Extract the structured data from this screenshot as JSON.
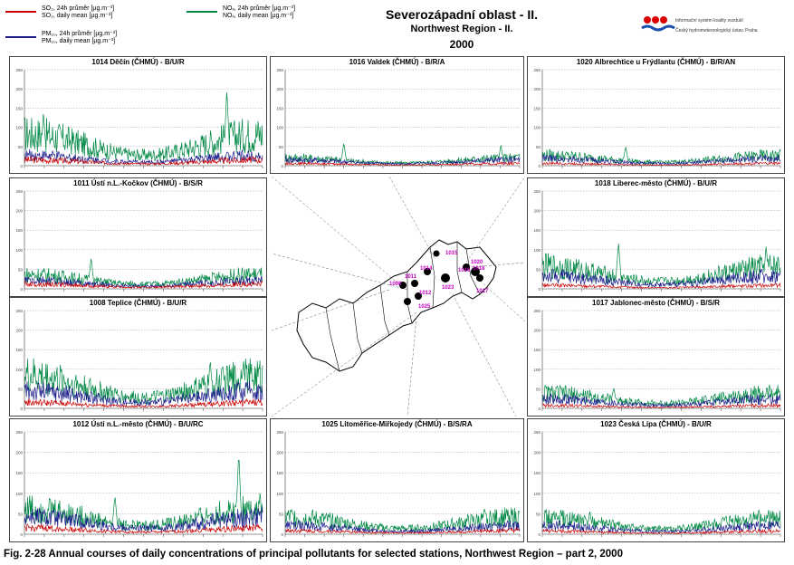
{
  "legend": {
    "items": [
      {
        "label_cz": "SO₂, 24h průměr [µg.m⁻³]",
        "label_en": "SO₂, daily mean [µg.m⁻³]",
        "color": "#cc0000"
      },
      {
        "label_cz": "PM₁₀, 24h průměr [µg.m⁻³]",
        "label_en": "PM₁₀, daily mean [µg.m⁻³]",
        "color": "#1a1a8c"
      },
      {
        "label_cz": "NOₓ, 24h průměr [µg.m⁻³]",
        "label_en": "NOₓ, daily mean [µg.m⁻³]",
        "color": "#008844"
      }
    ]
  },
  "header": {
    "title_cz": "Severozápadní oblast - II.",
    "title_en": "Northwest Region - II.",
    "year": "2000"
  },
  "institution": {
    "line1": "Informační systém kvality ovzduší",
    "line2": "Český hydrometeorologický ústav, Praha"
  },
  "caption": "Fig. 2-28  Annual courses of daily concentrations of principal pollutants for selected stations, Northwest Region – part 2, 2000",
  "map": {
    "station_labels": [
      "1015",
      "1014",
      "1016",
      "1018",
      "1020",
      "1008",
      "1011",
      "1023",
      "1012",
      "1017",
      "1025"
    ]
  },
  "chart_data": [
    {
      "type": "line",
      "title": "1014 Děčín (ČHMÚ)  -  B/U/R",
      "ylim": [
        0,
        250
      ],
      "yticks": [
        "0",
        "50",
        "100",
        "150",
        "200",
        "250"
      ],
      "level": {
        "SO2": 10,
        "PM10": 18,
        "NOx": 55,
        "peaks": [
          [
            8,
            140
          ],
          [
            85,
            200
          ]
        ]
      },
      "series": [
        {
          "name": "SO₂",
          "color": "#cc0000"
        },
        {
          "name": "PM₁₀",
          "color": "#1a1a8c"
        },
        {
          "name": "NOₓ",
          "color": "#008844"
        }
      ]
    },
    {
      "type": "line",
      "title": "1016 Valdek (ČHMÚ)  -  B/R/A",
      "ylim": [
        0,
        250
      ],
      "yticks": [
        "0",
        "50",
        "100",
        "150",
        "200",
        "250"
      ],
      "level": {
        "SO2": 4,
        "PM10": 10,
        "NOx": 14,
        "peaks": [
          [
            25,
            60
          ],
          [
            92,
            55
          ]
        ]
      },
      "series": [
        {
          "name": "SO₂",
          "color": "#cc0000"
        },
        {
          "name": "PM₁₀",
          "color": "#1a1a8c"
        },
        {
          "name": "NOₓ",
          "color": "#008844"
        }
      ]
    },
    {
      "type": "line",
      "title": "1020 Albrechtice u Frýdlantu (ČHMÚ)  -  B/R/AN",
      "ylim": [
        0,
        250
      ],
      "yticks": [
        "0",
        "50",
        "100",
        "150",
        "200",
        "250"
      ],
      "level": {
        "SO2": 4,
        "PM10": 12,
        "NOx": 18,
        "peaks": [
          [
            35,
            50
          ]
        ]
      },
      "series": [
        {
          "name": "SO₂",
          "color": "#cc0000"
        },
        {
          "name": "PM₁₀",
          "color": "#1a1a8c"
        },
        {
          "name": "NOₓ",
          "color": "#008844"
        }
      ]
    },
    {
      "type": "line",
      "title": "1011 Ústí n.L.-Kočkov (ČHMÚ)  -  B/S/R",
      "ylim": [
        0,
        250
      ],
      "yticks": [
        "0",
        "50",
        "100",
        "150",
        "200",
        "250"
      ],
      "level": {
        "SO2": 8,
        "PM10": 14,
        "NOx": 24,
        "peaks": [
          [
            28,
            80
          ]
        ]
      },
      "series": [
        {
          "name": "SO₂",
          "color": "#cc0000"
        },
        {
          "name": "PM₁₀",
          "color": "#1a1a8c"
        },
        {
          "name": "NOₓ",
          "color": "#008844"
        }
      ]
    },
    {
      "type": "line",
      "title": "1018 Liberec-město (ČHMÚ)  -  B/U/R",
      "ylim": [
        0,
        250
      ],
      "yticks": [
        "0",
        "50",
        "100",
        "150",
        "200",
        "250"
      ],
      "level": {
        "SO2": 6,
        "PM10": 22,
        "NOx": 38,
        "peaks": [
          [
            32,
            120
          ],
          [
            94,
            110
          ]
        ]
      },
      "series": [
        {
          "name": "SO₂",
          "color": "#cc0000"
        },
        {
          "name": "PM₁₀",
          "color": "#1a1a8c"
        },
        {
          "name": "NOₓ",
          "color": "#008844"
        }
      ]
    },
    {
      "type": "line",
      "title": "1008 Teplice (ČHMÚ)  -  B/U/R",
      "ylim": [
        0,
        250
      ],
      "yticks": [
        "0",
        "50",
        "100",
        "150",
        "200",
        "250"
      ],
      "level": {
        "SO2": 10,
        "PM10": 30,
        "NOx": 55,
        "peaks": [
          [
            78,
            125
          ],
          [
            92,
            125
          ]
        ]
      },
      "series": [
        {
          "name": "SO₂",
          "color": "#cc0000"
        },
        {
          "name": "PM₁₀",
          "color": "#1a1a8c"
        },
        {
          "name": "NOₓ",
          "color": "#008844"
        }
      ]
    },
    {
      "type": "line",
      "title": "1017 Jablonec-město (ČHMÚ)  -  B/S/R",
      "ylim": [
        0,
        250
      ],
      "yticks": [
        "0",
        "50",
        "100",
        "150",
        "200",
        "250"
      ],
      "level": {
        "SO2": 5,
        "PM10": 16,
        "NOx": 26,
        "peaks": [
          [
            30,
            55
          ]
        ]
      },
      "series": [
        {
          "name": "SO₂",
          "color": "#cc0000"
        },
        {
          "name": "PM₁₀",
          "color": "#1a1a8c"
        },
        {
          "name": "NOₓ",
          "color": "#008844"
        }
      ]
    },
    {
      "type": "line",
      "title": "1012 Ústí n.L.-město (ČHMÚ)  -  B/U/RC",
      "ylim": [
        0,
        250
      ],
      "yticks": [
        "0",
        "50",
        "100",
        "150",
        "200",
        "250"
      ],
      "level": {
        "SO2": 10,
        "PM10": 28,
        "NOx": 42,
        "peaks": [
          [
            90,
            200
          ],
          [
            38,
            95
          ]
        ]
      },
      "series": [
        {
          "name": "SO₂",
          "color": "#cc0000"
        },
        {
          "name": "PM₁₀",
          "color": "#1a1a8c"
        },
        {
          "name": "NOₓ",
          "color": "#008844"
        }
      ]
    },
    {
      "type": "line",
      "title": "1025 Litoměřice-Miřkojedy (ČHMÚ)  -  B/S/RA",
      "ylim": [
        0,
        250
      ],
      "yticks": [
        "0",
        "50",
        "100",
        "150",
        "200",
        "250"
      ],
      "level": {
        "SO2": 6,
        "PM10": 14,
        "NOx": 28,
        "peaks": [
          [
            85,
            65
          ]
        ]
      },
      "series": [
        {
          "name": "SO₂",
          "color": "#cc0000"
        },
        {
          "name": "PM₁₀",
          "color": "#1a1a8c"
        },
        {
          "name": "NOₓ",
          "color": "#008844"
        }
      ]
    },
    {
      "type": "line",
      "title": "1023 Česká Lípa (ČHMÚ)  -  B/U/R",
      "ylim": [
        0,
        250
      ],
      "yticks": [
        "0",
        "50",
        "100",
        "150",
        "200",
        "250"
      ],
      "level": {
        "SO2": 5,
        "PM10": 14,
        "NOx": 26,
        "peaks": [
          [
            20,
            55
          ]
        ]
      },
      "series": [
        {
          "name": "SO₂",
          "color": "#cc0000"
        },
        {
          "name": "PM₁₀",
          "color": "#1a1a8c"
        },
        {
          "name": "NOₓ",
          "color": "#008844"
        }
      ]
    }
  ]
}
